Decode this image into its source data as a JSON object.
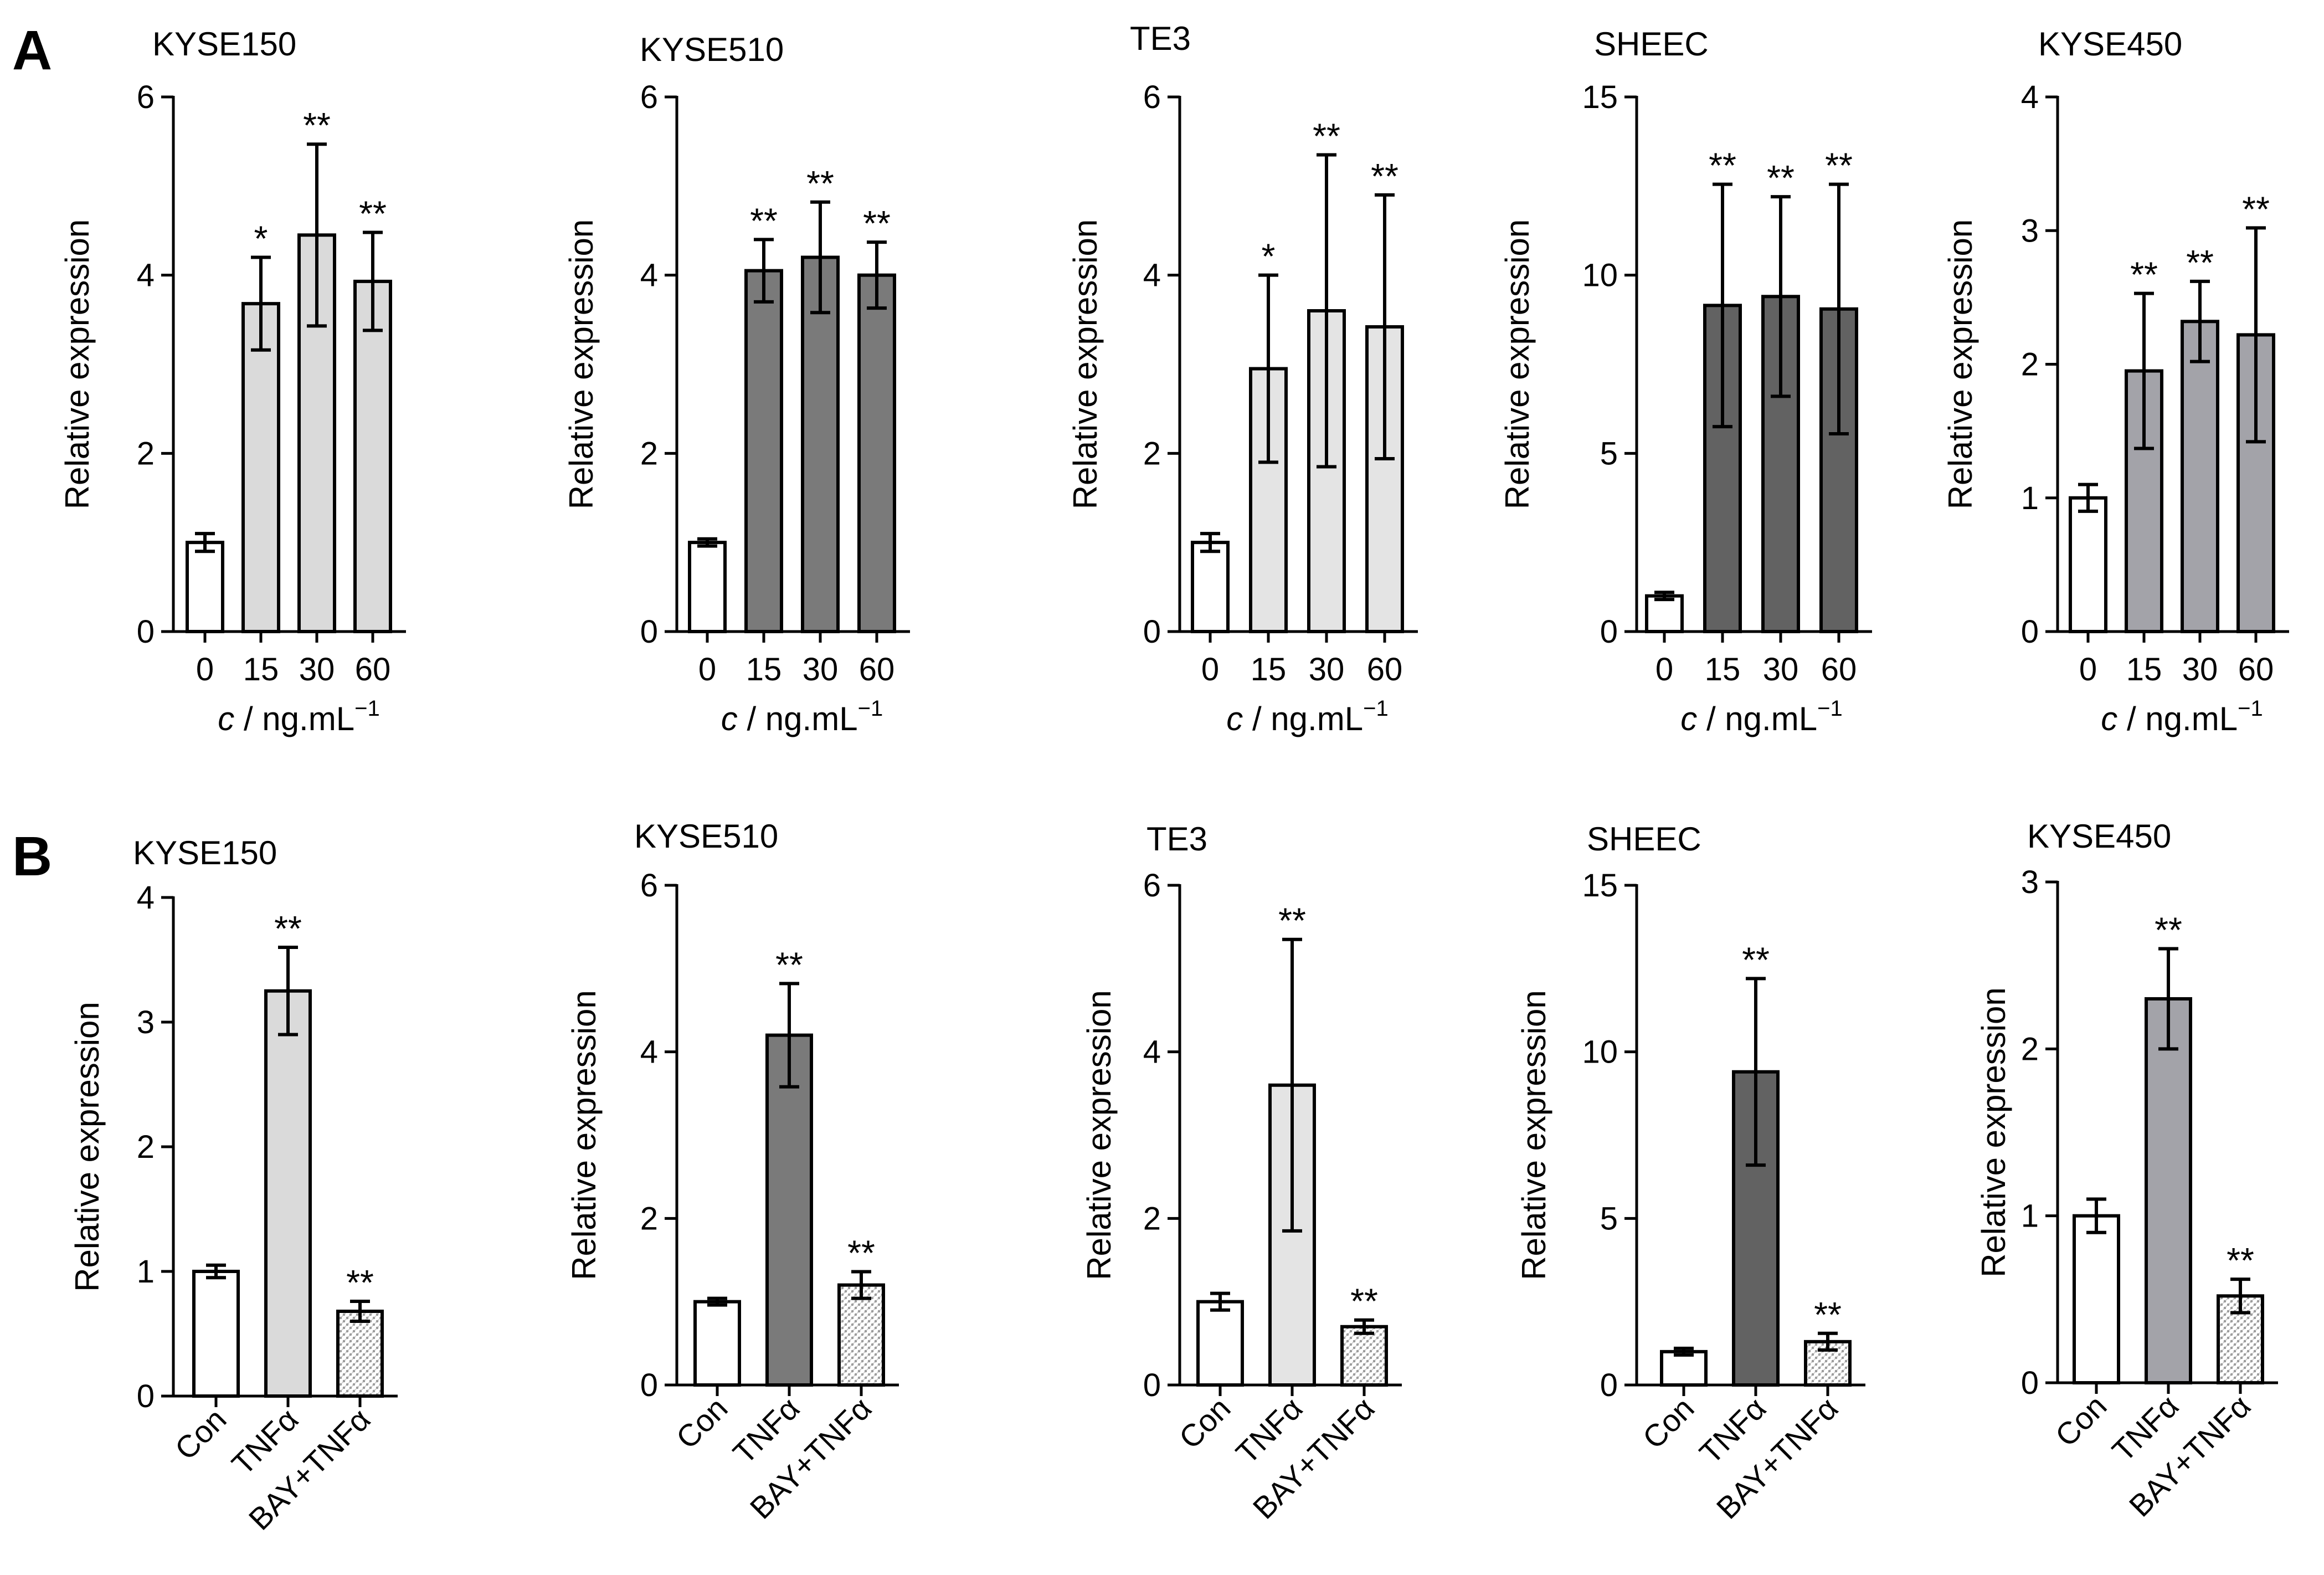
{
  "panels": [
    {
      "letter": "A"
    },
    {
      "letter": "B"
    }
  ],
  "chart_data": [
    {
      "panel": "A",
      "type": "bar",
      "title": "KYSE150",
      "ylabel": "Relative expression",
      "xlabel_var": "c",
      "xlabel_unit": " / ng.mL",
      "xlabel_exp": "−1",
      "ylim": [
        0,
        6
      ],
      "yticks": [
        0,
        2,
        4,
        6
      ],
      "categories": [
        "0",
        "15",
        "30",
        "60"
      ],
      "values": [
        1.0,
        3.68,
        4.45,
        3.93
      ],
      "errors": [
        0.1,
        0.52,
        1.02,
        0.55
      ],
      "significance": [
        "",
        "*",
        "**",
        "**"
      ],
      "fills": [
        "#ffffff",
        "#dadada",
        "#dadada",
        "#dadada"
      ]
    },
    {
      "panel": "A",
      "type": "bar",
      "title": "KYSE510",
      "ylabel": "Relative expression",
      "xlabel_var": "c",
      "xlabel_unit": " / ng.mL",
      "xlabel_exp": "−1",
      "ylim": [
        0,
        6
      ],
      "yticks": [
        0,
        2,
        4,
        6
      ],
      "categories": [
        "0",
        "15",
        "30",
        "60"
      ],
      "values": [
        1.0,
        4.05,
        4.2,
        4.0
      ],
      "errors": [
        0.04,
        0.35,
        0.62,
        0.37
      ],
      "significance": [
        "",
        "**",
        "**",
        "**"
      ],
      "fills": [
        "#ffffff",
        "#7a7a7a",
        "#7a7a7a",
        "#7a7a7a"
      ]
    },
    {
      "panel": "A",
      "type": "bar",
      "title": "TE3",
      "ylabel": "Relative expression",
      "xlabel_var": "c",
      "xlabel_unit": " / ng.mL",
      "xlabel_exp": "−1",
      "ylim": [
        0,
        6
      ],
      "yticks": [
        0,
        2,
        4,
        6
      ],
      "categories": [
        "0",
        "15",
        "30",
        "60"
      ],
      "values": [
        1.0,
        2.95,
        3.6,
        3.42
      ],
      "errors": [
        0.1,
        1.05,
        1.75,
        1.48
      ],
      "significance": [
        "",
        "*",
        "**",
        "**"
      ],
      "fills": [
        "#ffffff",
        "#e4e4e4",
        "#e4e4e4",
        "#e4e4e4"
      ]
    },
    {
      "panel": "A",
      "type": "bar",
      "title": "SHEEC",
      "ylabel": "Relative expression",
      "xlabel_var": "c",
      "xlabel_unit": " / ng.mL",
      "xlabel_exp": "−1",
      "ylim": [
        0,
        15
      ],
      "yticks": [
        0,
        5,
        10,
        15
      ],
      "categories": [
        "0",
        "15",
        "30",
        "60"
      ],
      "values": [
        1.0,
        9.15,
        9.4,
        9.05
      ],
      "errors": [
        0.1,
        3.4,
        2.8,
        3.5
      ],
      "significance": [
        "",
        "**",
        "**",
        "**"
      ],
      "fills": [
        "#ffffff",
        "#626262",
        "#626262",
        "#626262"
      ]
    },
    {
      "panel": "A",
      "type": "bar",
      "title": "KYSE450",
      "ylabel": "Relative expression",
      "xlabel_var": "c",
      "xlabel_unit": " / ng.mL",
      "xlabel_exp": "−1",
      "ylim": [
        0,
        4
      ],
      "yticks": [
        0,
        1,
        2,
        3,
        4
      ],
      "categories": [
        "0",
        "15",
        "30",
        "60"
      ],
      "values": [
        1.0,
        1.95,
        2.32,
        2.22
      ],
      "errors": [
        0.1,
        0.58,
        0.3,
        0.8
      ],
      "significance": [
        "",
        "**",
        "**",
        "**"
      ],
      "fills": [
        "#ffffff",
        "#a3a3a9",
        "#a3a3a9",
        "#a3a3a9"
      ]
    },
    {
      "panel": "B",
      "type": "bar",
      "title": "KYSE150",
      "ylabel": "Relative expression",
      "ylim": [
        0,
        4
      ],
      "yticks": [
        0,
        1,
        2,
        3,
        4
      ],
      "categories": [
        "Con",
        "TNFα",
        "BAY+TNFα"
      ],
      "values": [
        1.0,
        3.25,
        0.68
      ],
      "errors": [
        0.05,
        0.35,
        0.08
      ],
      "significance": [
        "",
        "**",
        "**"
      ],
      "fills": [
        "#ffffff",
        "#dadada",
        "pattern"
      ]
    },
    {
      "panel": "B",
      "type": "bar",
      "title": "KYSE510",
      "ylabel": "Relative expression",
      "ylim": [
        0,
        6
      ],
      "yticks": [
        0,
        2,
        4,
        6
      ],
      "categories": [
        "Con",
        "TNFα",
        "BAY+TNFα"
      ],
      "values": [
        1.0,
        4.2,
        1.2
      ],
      "errors": [
        0.04,
        0.62,
        0.16
      ],
      "significance": [
        "",
        "**",
        "**"
      ],
      "fills": [
        "#ffffff",
        "#7a7a7a",
        "pattern"
      ]
    },
    {
      "panel": "B",
      "type": "bar",
      "title": "TE3",
      "ylabel": "Relative expression",
      "ylim": [
        0,
        6
      ],
      "yticks": [
        0,
        2,
        4,
        6
      ],
      "categories": [
        "Con",
        "TNFα",
        "BAY+TNFα"
      ],
      "values": [
        1.0,
        3.6,
        0.7
      ],
      "errors": [
        0.1,
        1.75,
        0.08
      ],
      "significance": [
        "",
        "**",
        "**"
      ],
      "fills": [
        "#ffffff",
        "#e4e4e4",
        "pattern"
      ]
    },
    {
      "panel": "B",
      "type": "bar",
      "title": "SHEEC",
      "ylabel": "Relative expression",
      "ylim": [
        0,
        15
      ],
      "yticks": [
        0,
        5,
        10,
        15
      ],
      "categories": [
        "Con",
        "TNFα",
        "BAY+TNFα"
      ],
      "values": [
        1.0,
        9.4,
        1.3
      ],
      "errors": [
        0.1,
        2.8,
        0.25
      ],
      "significance": [
        "",
        "**",
        "**"
      ],
      "fills": [
        "#ffffff",
        "#626262",
        "pattern"
      ]
    },
    {
      "panel": "B",
      "type": "bar",
      "title": "KYSE450",
      "ylabel": "Relative expression",
      "ylim": [
        0,
        3
      ],
      "yticks": [
        0,
        1,
        2,
        3
      ],
      "categories": [
        "Con",
        "TNFα",
        "BAY+TNFα"
      ],
      "values": [
        1.0,
        2.3,
        0.52
      ],
      "errors": [
        0.1,
        0.3,
        0.1
      ],
      "significance": [
        "",
        "**",
        "**"
      ],
      "fills": [
        "#ffffff",
        "#a3a3a9",
        "pattern"
      ]
    }
  ]
}
